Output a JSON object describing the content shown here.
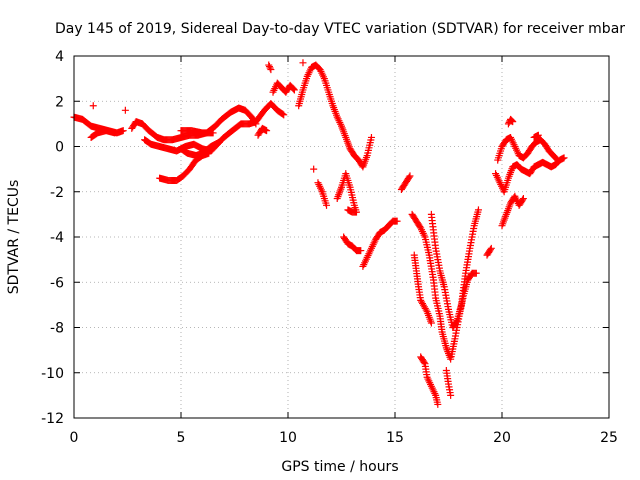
{
  "chart_data": {
    "type": "scatter",
    "title": "Day 145 of 2019, Sidereal Day-to-day VTEC variation (SDTVAR) for receiver mbar",
    "xlabel": "GPS time / hours",
    "ylabel": "SDTVAR / TECUs",
    "xlim": [
      0,
      25
    ],
    "ylim": [
      -12,
      4
    ],
    "xticks": [
      0,
      5,
      10,
      15,
      20,
      25
    ],
    "yticks": [
      4,
      2,
      0,
      -2,
      -4,
      -6,
      -8,
      -10,
      -12
    ],
    "grid": true,
    "marker": "plus",
    "color": "#ff0000",
    "segments": [
      [
        [
          0.0,
          1.3
        ],
        [
          0.4,
          1.2
        ],
        [
          0.8,
          0.9
        ],
        [
          1.2,
          0.8
        ],
        [
          1.6,
          0.7
        ],
        [
          2.0,
          0.6
        ],
        [
          2.3,
          0.7
        ]
      ],
      [
        [
          0.8,
          0.4
        ],
        [
          1.1,
          0.6
        ],
        [
          1.5,
          0.7
        ],
        [
          1.9,
          0.6
        ]
      ],
      [
        [
          0.9,
          1.8
        ]
      ],
      [
        [
          2.4,
          1.6
        ]
      ],
      [
        [
          2.7,
          0.8
        ],
        [
          2.9,
          1.1
        ],
        [
          3.2,
          1.0
        ],
        [
          3.5,
          0.7
        ],
        [
          3.9,
          0.4
        ],
        [
          4.2,
          0.3
        ],
        [
          4.6,
          0.3
        ],
        [
          5.0,
          0.4
        ],
        [
          5.4,
          0.5
        ],
        [
          5.8,
          0.5
        ],
        [
          6.2,
          0.6
        ],
        [
          6.6,
          0.9
        ],
        [
          6.9,
          1.2
        ],
        [
          7.3,
          1.5
        ],
        [
          7.7,
          1.7
        ],
        [
          8.0,
          1.6
        ],
        [
          8.3,
          1.3
        ],
        [
          8.5,
          1.0
        ]
      ],
      [
        [
          3.3,
          0.3
        ],
        [
          3.6,
          0.1
        ],
        [
          4.0,
          0.0
        ],
        [
          4.4,
          -0.1
        ],
        [
          4.8,
          -0.2
        ],
        [
          5.2,
          0.0
        ],
        [
          5.6,
          0.1
        ],
        [
          6.0,
          -0.1
        ],
        [
          6.4,
          -0.2
        ],
        [
          6.7,
          0.1
        ],
        [
          7.0,
          0.4
        ],
        [
          7.4,
          0.7
        ],
        [
          7.8,
          1.0
        ],
        [
          8.2,
          1.0
        ],
        [
          8.5,
          1.1
        ],
        [
          8.9,
          1.6
        ],
        [
          9.2,
          1.9
        ],
        [
          9.5,
          1.6
        ],
        [
          9.8,
          1.4
        ]
      ],
      [
        [
          5.0,
          -0.1
        ],
        [
          5.3,
          -0.3
        ],
        [
          5.7,
          -0.4
        ],
        [
          6.0,
          -0.3
        ],
        [
          6.4,
          0.0
        ],
        [
          6.8,
          0.2
        ]
      ],
      [
        [
          4.0,
          -1.4
        ],
        [
          4.4,
          -1.5
        ],
        [
          4.8,
          -1.5
        ],
        [
          5.1,
          -1.3
        ],
        [
          5.4,
          -1.0
        ],
        [
          5.7,
          -0.6
        ],
        [
          6.0,
          -0.4
        ],
        [
          6.3,
          -0.3
        ]
      ],
      [
        [
          5.0,
          0.7
        ],
        [
          5.5,
          0.7
        ],
        [
          6.0,
          0.6
        ],
        [
          6.5,
          0.6
        ]
      ],
      [
        [
          8.6,
          0.5
        ],
        [
          8.8,
          0.8
        ],
        [
          9.0,
          0.7
        ]
      ],
      [
        [
          9.1,
          3.6
        ],
        [
          9.2,
          3.4
        ]
      ],
      [
        [
          9.3,
          2.4
        ],
        [
          9.5,
          2.8
        ],
        [
          9.7,
          2.6
        ],
        [
          9.9,
          2.4
        ],
        [
          10.1,
          2.7
        ],
        [
          10.3,
          2.5
        ]
      ],
      [
        [
          10.5,
          1.8
        ],
        [
          10.7,
          2.5
        ],
        [
          10.9,
          3.1
        ],
        [
          11.1,
          3.5
        ],
        [
          11.3,
          3.6
        ],
        [
          11.5,
          3.4
        ],
        [
          11.7,
          3.0
        ],
        [
          11.9,
          2.4
        ],
        [
          12.1,
          1.8
        ],
        [
          12.3,
          1.3
        ],
        [
          12.5,
          0.9
        ],
        [
          12.7,
          0.4
        ],
        [
          12.9,
          -0.1
        ],
        [
          13.1,
          -0.4
        ],
        [
          13.3,
          -0.6
        ],
        [
          13.5,
          -0.9
        ],
        [
          13.7,
          -0.4
        ],
        [
          13.9,
          0.4
        ]
      ],
      [
        [
          10.7,
          3.7
        ]
      ],
      [
        [
          11.2,
          -1.0
        ]
      ],
      [
        [
          11.4,
          -1.6
        ],
        [
          11.6,
          -2.0
        ],
        [
          11.8,
          -2.6
        ]
      ],
      [
        [
          12.3,
          -2.3
        ],
        [
          12.5,
          -1.8
        ],
        [
          12.7,
          -1.2
        ],
        [
          12.9,
          -1.8
        ],
        [
          13.1,
          -2.6
        ],
        [
          13.2,
          -2.9
        ],
        [
          13.0,
          -2.9
        ],
        [
          12.8,
          -2.8
        ]
      ],
      [
        [
          12.6,
          -4.0
        ],
        [
          12.8,
          -4.3
        ],
        [
          13.0,
          -4.4
        ],
        [
          13.2,
          -4.6
        ],
        [
          13.4,
          -4.6
        ]
      ],
      [
        [
          13.5,
          -5.3
        ],
        [
          13.7,
          -4.9
        ],
        [
          13.9,
          -4.5
        ],
        [
          14.1,
          -4.1
        ],
        [
          14.3,
          -3.8
        ],
        [
          14.5,
          -3.7
        ],
        [
          14.7,
          -3.5
        ],
        [
          14.9,
          -3.3
        ],
        [
          15.1,
          -3.3
        ]
      ],
      [
        [
          15.3,
          -1.9
        ],
        [
          15.5,
          -1.6
        ],
        [
          15.7,
          -1.3
        ]
      ],
      [
        [
          15.8,
          -3.0
        ],
        [
          16.0,
          -3.3
        ],
        [
          16.2,
          -3.6
        ],
        [
          16.4,
          -4.0
        ],
        [
          16.6,
          -4.8
        ],
        [
          16.8,
          -5.9
        ],
        [
          16.9,
          -6.7
        ],
        [
          17.1,
          -7.5
        ],
        [
          17.2,
          -8.2
        ],
        [
          17.4,
          -8.9
        ],
        [
          17.6,
          -9.4
        ],
        [
          17.8,
          -8.5
        ],
        [
          18.0,
          -7.5
        ],
        [
          18.2,
          -6.6
        ],
        [
          18.4,
          -5.9
        ],
        [
          18.6,
          -5.6
        ],
        [
          18.8,
          -5.6
        ]
      ],
      [
        [
          15.9,
          -4.8
        ],
        [
          16.0,
          -5.5
        ],
        [
          16.1,
          -6.2
        ],
        [
          16.2,
          -6.8
        ],
        [
          16.5,
          -7.3
        ],
        [
          16.7,
          -7.8
        ]
      ],
      [
        [
          16.2,
          -9.3
        ],
        [
          16.4,
          -9.6
        ],
        [
          16.5,
          -10.2
        ],
        [
          16.7,
          -10.6
        ],
        [
          16.9,
          -11.0
        ],
        [
          17.0,
          -11.4
        ]
      ],
      [
        [
          16.7,
          -3.0
        ],
        [
          16.9,
          -4.5
        ],
        [
          17.1,
          -5.5
        ],
        [
          17.3,
          -6.2
        ],
        [
          17.5,
          -7.2
        ],
        [
          17.7,
          -8.0
        ],
        [
          17.9,
          -7.7
        ],
        [
          18.1,
          -7.0
        ],
        [
          18.3,
          -5.6
        ],
        [
          18.5,
          -4.5
        ],
        [
          18.7,
          -3.5
        ],
        [
          18.9,
          -2.8
        ]
      ],
      [
        [
          17.4,
          -9.9
        ],
        [
          17.5,
          -10.5
        ],
        [
          17.6,
          -11.0
        ]
      ],
      [
        [
          19.3,
          -4.8
        ],
        [
          19.5,
          -4.5
        ]
      ],
      [
        [
          19.7,
          -1.2
        ],
        [
          19.9,
          -1.6
        ],
        [
          20.1,
          -2.0
        ],
        [
          20.3,
          -1.4
        ],
        [
          20.5,
          -0.9
        ],
        [
          20.7,
          -0.8
        ],
        [
          20.9,
          -1.0
        ],
        [
          21.1,
          -1.1
        ],
        [
          21.3,
          -1.2
        ],
        [
          21.5,
          -0.9
        ],
        [
          21.7,
          -0.8
        ],
        [
          21.9,
          -0.7
        ],
        [
          22.1,
          -0.8
        ],
        [
          22.3,
          -0.9
        ],
        [
          22.5,
          -0.8
        ],
        [
          22.7,
          -0.6
        ],
        [
          22.9,
          -0.5
        ]
      ],
      [
        [
          19.8,
          -0.6
        ],
        [
          20.0,
          0.0
        ],
        [
          20.2,
          0.3
        ],
        [
          20.4,
          0.4
        ],
        [
          20.6,
          0.0
        ],
        [
          20.8,
          -0.4
        ],
        [
          21.0,
          -0.5
        ],
        [
          21.2,
          -0.3
        ],
        [
          21.4,
          0.0
        ],
        [
          21.6,
          0.2
        ],
        [
          21.8,
          0.3
        ],
        [
          22.0,
          0.1
        ],
        [
          22.2,
          -0.2
        ],
        [
          22.4,
          -0.4
        ],
        [
          22.6,
          -0.6
        ]
      ],
      [
        [
          20.0,
          -3.5
        ],
        [
          20.2,
          -3.0
        ],
        [
          20.4,
          -2.5
        ],
        [
          20.6,
          -2.2
        ],
        [
          20.8,
          -2.6
        ],
        [
          21.0,
          -2.3
        ]
      ],
      [
        [
          20.3,
          1.0
        ],
        [
          20.4,
          1.2
        ],
        [
          20.5,
          1.1
        ]
      ],
      [
        [
          21.5,
          0.4
        ],
        [
          21.7,
          0.5
        ]
      ]
    ]
  }
}
